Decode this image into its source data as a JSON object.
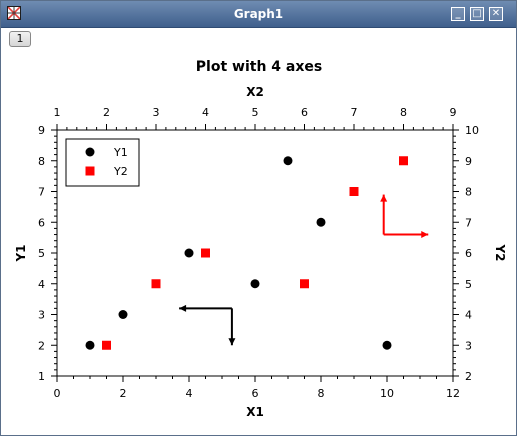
{
  "window": {
    "title": "Graph1",
    "tab_label": "1",
    "buttons": {
      "minimize": "_",
      "maximize": "□",
      "close": "✕"
    }
  },
  "chart_data": {
    "type": "scatter",
    "title": "Plot with 4 axes",
    "xlabel": "X1",
    "x2label": "X2",
    "ylabel": "Y1",
    "y2label": "Y2",
    "xlim": [
      0,
      12
    ],
    "ylim": [
      1,
      9
    ],
    "x2lim": [
      1,
      9
    ],
    "y2lim": [
      2,
      10
    ],
    "x_ticks": [
      "0",
      "2",
      "4",
      "6",
      "8",
      "10",
      "12"
    ],
    "y_ticks": [
      "1",
      "2",
      "3",
      "4",
      "5",
      "6",
      "7",
      "8",
      "9"
    ],
    "x2_ticks": [
      "1",
      "2",
      "3",
      "4",
      "5",
      "6",
      "7",
      "8",
      "9"
    ],
    "y2_ticks": [
      "2",
      "3",
      "4",
      "5",
      "6",
      "7",
      "8",
      "9",
      "10"
    ],
    "legend": {
      "placement": "top-left",
      "entries": [
        "Y1",
        "Y2"
      ]
    },
    "series": [
      {
        "name": "Y1",
        "axes": "X1-Y1",
        "color": "#000000",
        "marker": "circle",
        "x": [
          1,
          2,
          4,
          6,
          7,
          8,
          10
        ],
        "y": [
          2,
          3,
          5,
          4,
          8,
          6,
          2
        ]
      },
      {
        "name": "Y2",
        "axes": "X2-Y2",
        "color": "#ff0000",
        "marker": "square",
        "x": [
          2,
          3,
          4,
          6,
          7,
          8
        ],
        "y": [
          3,
          5,
          6,
          5,
          8,
          9
        ]
      }
    ],
    "annotations": [
      {
        "type": "axis-arrows",
        "axes": "X1-Y1",
        "color": "#000000",
        "origin": [
          5.3,
          3.2
        ],
        "arrow_x_to": 3.7,
        "arrow_y_to": 2.0
      },
      {
        "type": "axis-arrows",
        "axes": "X2-Y2",
        "color": "#ff0000",
        "origin": [
          7.6,
          6.6
        ],
        "arrow_x_to": 8.5,
        "arrow_y_to": 7.9
      }
    ]
  }
}
